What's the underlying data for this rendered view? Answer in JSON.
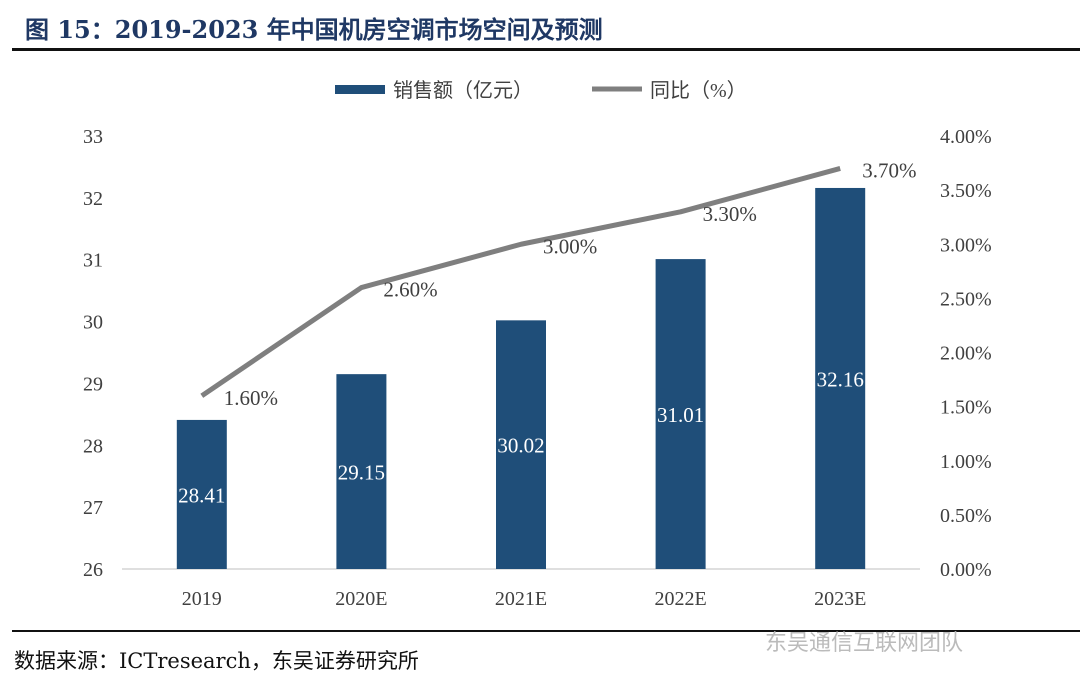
{
  "title": "图 15：2019-2023 年中国机房空调市场空间及预测",
  "source": "数据来源：ICTresearch，东吴证券研究所",
  "watermark": "东吴通信互联网团队",
  "chart_data": {
    "type": "bar+line",
    "categories": [
      "2019",
      "2020E",
      "2021E",
      "2022E",
      "2023E"
    ],
    "series": [
      {
        "name": "销售额（亿元）",
        "type": "bar",
        "axis": "left",
        "color": "#1f4e79",
        "values": [
          28.41,
          29.15,
          30.02,
          31.01,
          32.16
        ],
        "labels": [
          "28.41",
          "29.15",
          "30.02",
          "31.01",
          "32.16"
        ]
      },
      {
        "name": "同比（%）",
        "type": "line",
        "axis": "right",
        "color": "#7f7f7f",
        "values": [
          1.6,
          2.6,
          3.0,
          3.3,
          3.7
        ],
        "labels": [
          "1.60%",
          "2.60%",
          "3.00%",
          "3.30%",
          "3.70%"
        ]
      }
    ],
    "y_left": {
      "range": [
        26,
        33
      ],
      "ticks": [
        "26",
        "27",
        "28",
        "29",
        "30",
        "31",
        "32",
        "33"
      ]
    },
    "y_right": {
      "range": [
        0,
        4
      ],
      "ticks": [
        "0.00%",
        "0.50%",
        "1.00%",
        "1.50%",
        "2.00%",
        "2.50%",
        "3.00%",
        "3.50%",
        "4.00%"
      ]
    },
    "legend": "top",
    "grid": false
  }
}
